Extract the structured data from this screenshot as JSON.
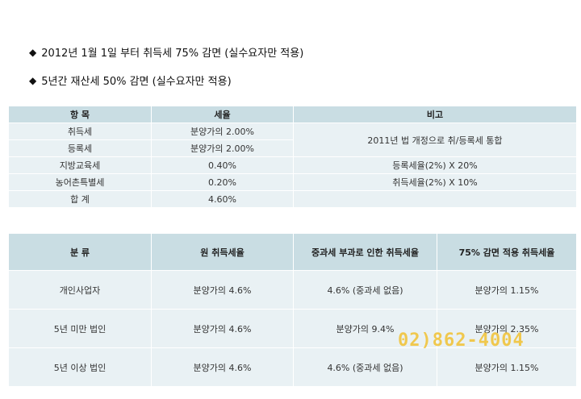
{
  "bullets": [
    {
      "icon": "diamond-bullet-icon",
      "text": "2012년 1월 1일 부터 취득세 75% 감면 (실수요자만 적용)"
    },
    {
      "icon": "diamond-bullet-icon",
      "text": "5년간 재산세 50% 감면 (실수요자만 적용)"
    }
  ],
  "table1": {
    "headers": [
      "항    목",
      "세율",
      "비고"
    ],
    "rows": [
      {
        "item": "취득세",
        "rate": "분양가의 2.00%"
      },
      {
        "item": "등록세",
        "rate": "분양가의 2.00%"
      },
      {
        "item": "지방교육세",
        "rate": "0.40%",
        "note": "등록세율(2%) X 20%"
      },
      {
        "item": "농어촌특별세",
        "rate": "0.20%",
        "note": "취득세율(2%) X 10%"
      },
      {
        "item": "합    계",
        "rate": "4.60%",
        "note": ""
      }
    ],
    "merged_note": "2011년  법 개정으로 취/등록세 통합"
  },
  "table2": {
    "headers": [
      "분        류",
      "원 취득세율",
      "중과세 부과로 인한 취득세율",
      "75% 감면 적용 취득세율"
    ],
    "rows": [
      [
        "개인사업자",
        "분양가의 4.6%",
        "4.6% (중과세 없음)",
        "분양가의 1.15%"
      ],
      [
        "5년 미만 법인",
        "분양가의 4.6%",
        "분양가의 9.4%",
        "분양가의 2.35%"
      ],
      [
        "5년 이상 법인",
        "분양가의 4.6%",
        "4.6% (중과세 없음)",
        "분양가의 1.15%"
      ]
    ]
  },
  "watermark": "02)862-4004",
  "colors": {
    "header_bg": "#c9dde3",
    "cell_bg": "#e9f1f4",
    "watermark": "#f2c232"
  }
}
